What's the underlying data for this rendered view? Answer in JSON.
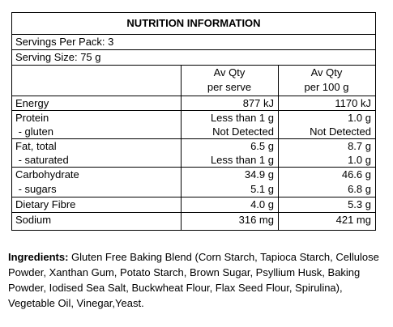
{
  "panel": {
    "title": "NUTRITION INFORMATION",
    "servings_per_pack": "Servings Per Pack: 3",
    "serving_size": "Serving Size: 75 g",
    "col1_header_line1": "Av Qty",
    "col1_header_line2": "per serve",
    "col2_header_line1": "Av Qty",
    "col2_header_line2": "per 100 g",
    "rows": [
      {
        "label": "Energy",
        "per_serve": "877 kJ",
        "per_100g": "1170 kJ"
      },
      {
        "label": "Protein",
        "per_serve": "Less than 1 g",
        "per_100g": "1.0 g"
      },
      {
        "label": " - gluten",
        "per_serve": "Not Detected",
        "per_100g": "Not Detected"
      },
      {
        "label": "Fat, total",
        "per_serve": "6.5 g",
        "per_100g": "8.7 g"
      },
      {
        "label": " - saturated",
        "per_serve": "Less than 1 g",
        "per_100g": "1.0 g"
      },
      {
        "label": "Carbohydrate",
        "per_serve": "34.9 g",
        "per_100g": "46.6 g"
      },
      {
        "label": " - sugars",
        "per_serve": "5.1 g",
        "per_100g": "6.8 g"
      },
      {
        "label": "Dietary Fibre",
        "per_serve": "4.0 g",
        "per_100g": "5.3 g"
      },
      {
        "label": "Sodium",
        "per_serve": "316 mg",
        "per_100g": "421 mg"
      }
    ]
  },
  "ingredients": {
    "lead": "Ingredients:",
    "text": " Gluten Free Baking Blend (Corn Starch, Tapioca Starch, Cellulose Powder, Xanthan Gum, Potato Starch, Brown Sugar, Psyllium Husk, Baking Powder, Iodised Sea Salt, Buckwheat Flour, Flax Seed Flour, Spirulina), Vegetable Oil, Vinegar,Yeast."
  }
}
